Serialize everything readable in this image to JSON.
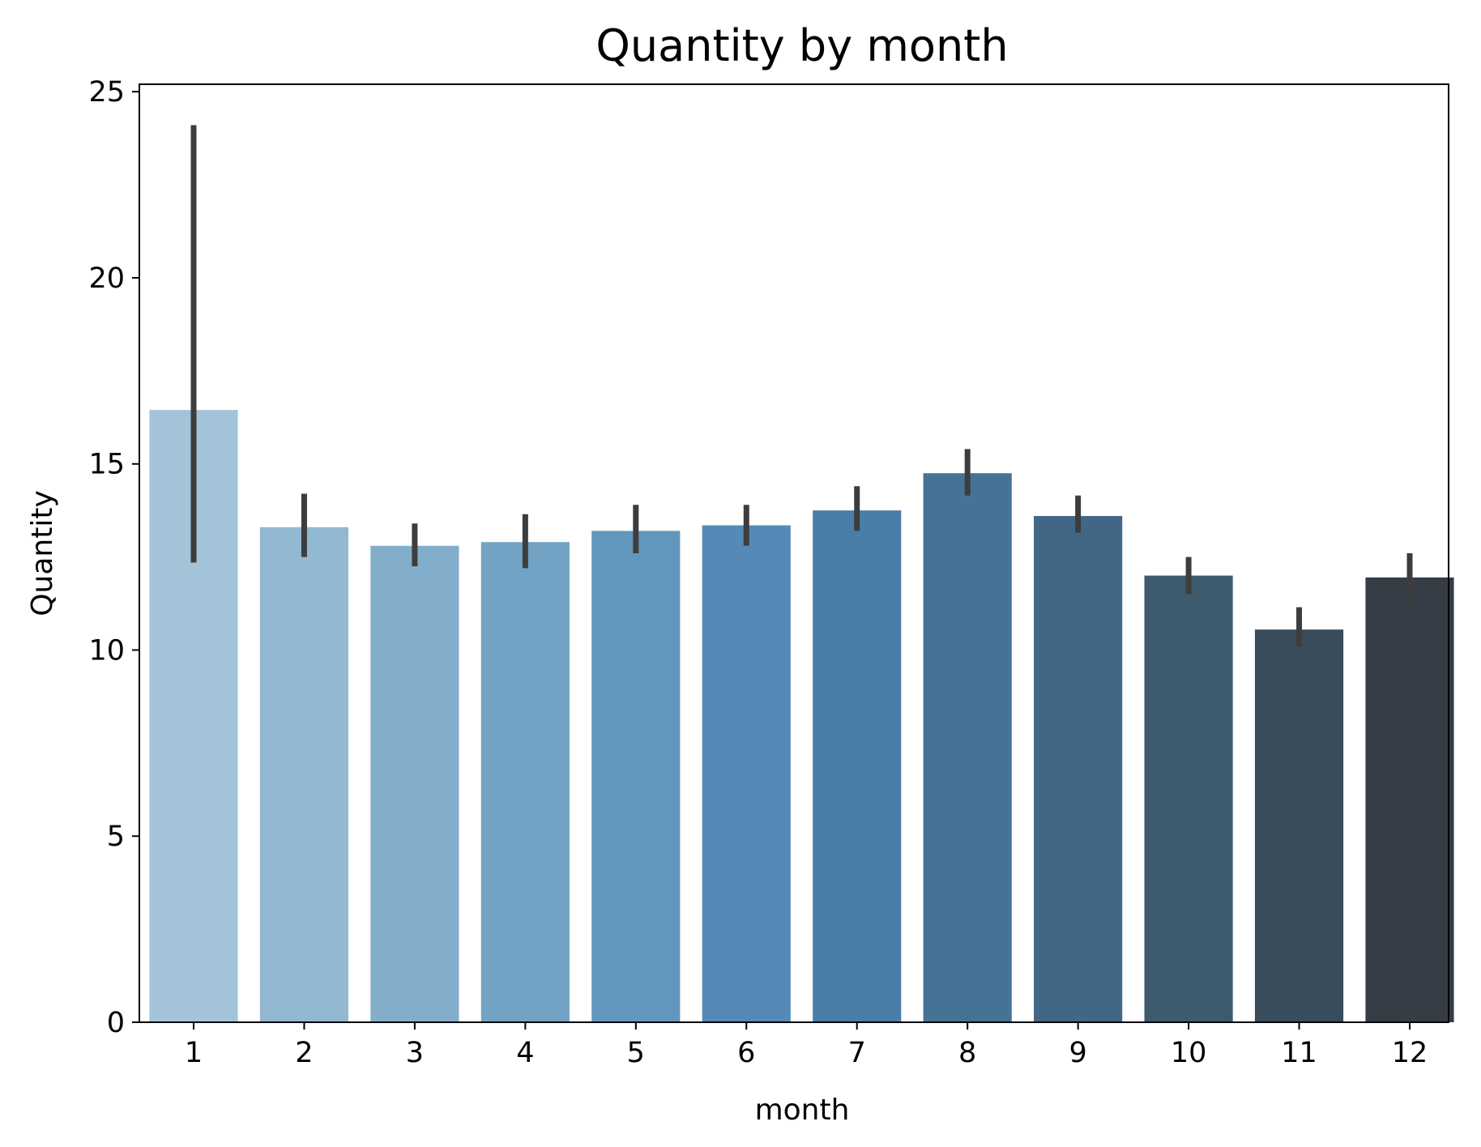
{
  "chart_data": {
    "type": "bar",
    "title": "Quantity by month",
    "xlabel": "month",
    "ylabel": "Quantity",
    "categories": [
      "1",
      "2",
      "3",
      "4",
      "5",
      "6",
      "7",
      "8",
      "9",
      "10",
      "11",
      "12"
    ],
    "values": [
      16.45,
      13.3,
      12.8,
      12.9,
      13.2,
      13.35,
      13.75,
      14.75,
      13.6,
      12.0,
      10.55,
      11.95
    ],
    "error_low": [
      12.35,
      12.5,
      12.25,
      12.2,
      12.6,
      12.8,
      13.2,
      14.15,
      13.15,
      11.5,
      10.1,
      11.35
    ],
    "error_high": [
      24.1,
      14.2,
      13.4,
      13.65,
      13.9,
      13.9,
      14.4,
      15.4,
      14.15,
      12.5,
      11.15,
      12.6
    ],
    "ylim": [
      0,
      25.2
    ],
    "yticks": [
      "0",
      "5",
      "10",
      "15",
      "20",
      "25"
    ],
    "grid": false,
    "colors": [
      "#a3c4d8",
      "#93b8d2",
      "#82aecb",
      "#72a3c4",
      "#6396bd",
      "#548ab5",
      "#4a7ea8",
      "#457396",
      "#426786",
      "#3e5a6d",
      "#394c5c",
      "#363d46"
    ],
    "error_color": "#3d3d3d"
  }
}
